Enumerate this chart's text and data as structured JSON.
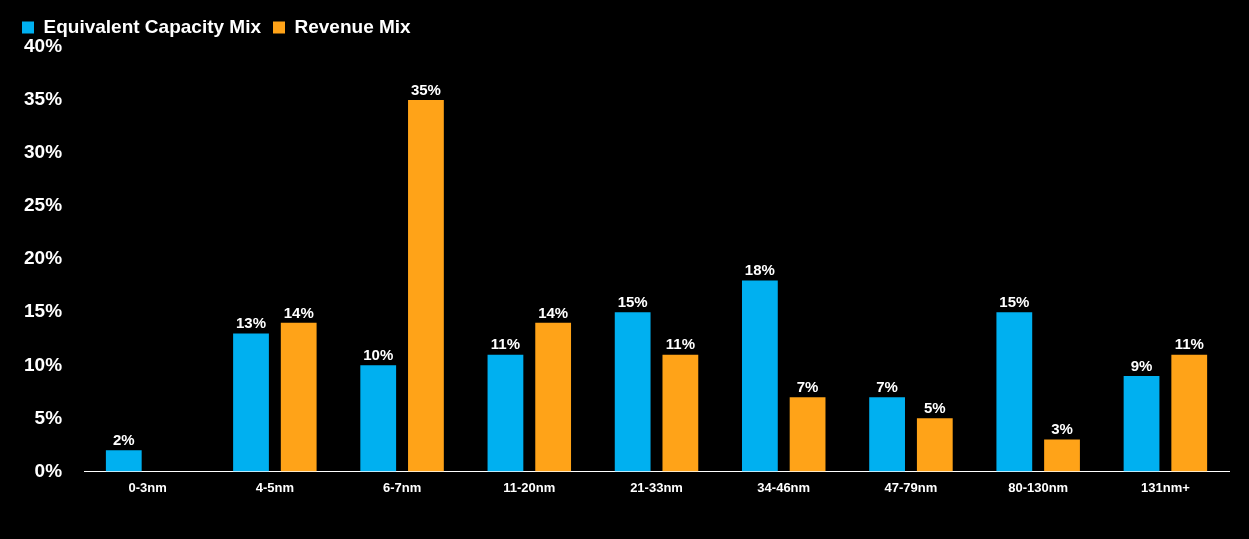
{
  "chart_data": {
    "type": "bar",
    "categories": [
      "0-3nm",
      "4-5nm",
      "6-7nm",
      "11-20nm",
      "21-33nm",
      "34-46nm",
      "47-79nm",
      "80-130nm",
      "131nm+"
    ],
    "series": [
      {
        "name": "Equivalent Capacity Mix",
        "color": "#00b0f0",
        "values": [
          2,
          13,
          10,
          11,
          15,
          18,
          7,
          15,
          9
        ],
        "value_labels": [
          "2%",
          "13%",
          "10%",
          "11%",
          "15%",
          "18%",
          "7%",
          "15%",
          "9%"
        ]
      },
      {
        "name": "Revenue Mix",
        "color": "#ffa318",
        "values": [
          null,
          14,
          35,
          14,
          11,
          7,
          5,
          3,
          11
        ],
        "value_labels": [
          null,
          "14%",
          "35%",
          "14%",
          "11%",
          "7%",
          "5%",
          "3%",
          "11%"
        ]
      }
    ],
    "ylim": [
      0,
      40
    ],
    "yticks": [
      {
        "value": 0,
        "label": "0%"
      },
      {
        "value": 5,
        "label": "5%"
      },
      {
        "value": 10,
        "label": "10%"
      },
      {
        "value": 15,
        "label": "15%"
      },
      {
        "value": 20,
        "label": "20%"
      },
      {
        "value": 25,
        "label": "25%"
      },
      {
        "value": 30,
        "label": "30%"
      },
      {
        "value": 35,
        "label": "35%"
      },
      {
        "value": 40,
        "label": "40%"
      }
    ],
    "grid": false,
    "legend": "top left"
  }
}
